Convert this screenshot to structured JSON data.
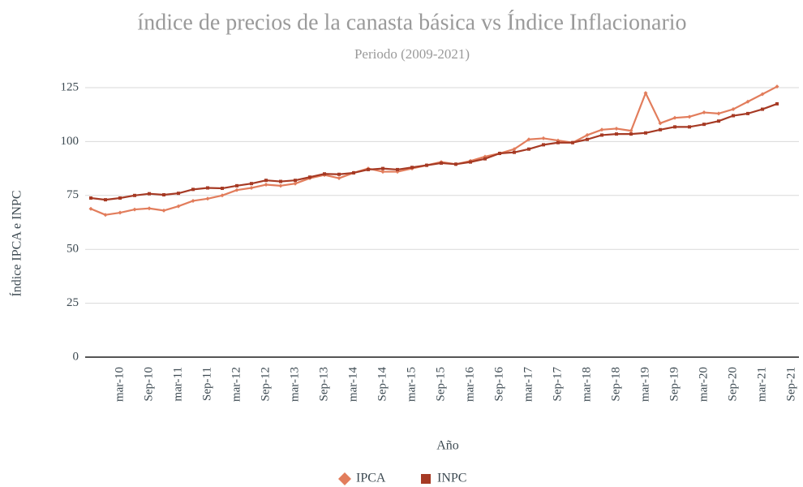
{
  "chart_data": {
    "type": "line",
    "title": "índice de precios de la canasta básica vs Índice Inflacionario",
    "subtitle": "Periodo (2009-2021)",
    "x_label": "Año",
    "y_label": "Índice IPCA e INPC",
    "categories": [
      null,
      null,
      "mar-10",
      null,
      "Sep-10",
      null,
      "mar-11",
      null,
      "Sep-11",
      null,
      "mar-12",
      null,
      "Sep-12",
      null,
      "mar-13",
      null,
      "Sep-13",
      null,
      "mar-14",
      null,
      "Sep-14",
      null,
      "mar-15",
      null,
      "Sep-15",
      null,
      "mar-16",
      null,
      "Sep-16",
      null,
      "mar-17",
      null,
      "Sep-17",
      null,
      "mar-18",
      null,
      "Sep-18",
      null,
      "mar-19",
      null,
      "Sep-19",
      null,
      "mar-20",
      null,
      "Sep-20",
      null,
      "mar-21",
      null,
      "Sep-21"
    ],
    "series": [
      {
        "name": "IPCA",
        "color": "#e27d5c",
        "marker": "diamond",
        "values": [
          68.8,
          66,
          67,
          68.5,
          69,
          68,
          70,
          72.5,
          73.5,
          75,
          77.5,
          78.5,
          80,
          79.5,
          80.5,
          83,
          84.5,
          83,
          85.5,
          87.5,
          86,
          86,
          87.5,
          89,
          90.5,
          89.5,
          91,
          93,
          94.5,
          96.5,
          101,
          101.5,
          100.5,
          99.5,
          103,
          105.5,
          106,
          105,
          122.5,
          108.5,
          111,
          111.5,
          113.5,
          113,
          115,
          118.5,
          122,
          125.5,
          null
        ]
      },
      {
        "name": "INPC",
        "color": "#a63a24",
        "marker": "square",
        "values": [
          73.8,
          73,
          73.8,
          75,
          75.8,
          75.3,
          76,
          77.8,
          78.5,
          78.3,
          79.5,
          80.5,
          82,
          81.5,
          82,
          83.5,
          85,
          84.8,
          85.5,
          87,
          87.5,
          87,
          88,
          89,
          90,
          89.5,
          90.5,
          92,
          94.5,
          95,
          96.5,
          98.5,
          99.5,
          99.5,
          101,
          103,
          103.5,
          103.5,
          104,
          105.5,
          106.8,
          106.8,
          108,
          109.5,
          112,
          113,
          115,
          117.5,
          null
        ]
      }
    ],
    "ylim": [
      0,
      125
    ],
    "yticks": [
      0,
      25,
      50,
      75,
      100,
      125
    ],
    "grid": true,
    "legend": "bottom"
  }
}
